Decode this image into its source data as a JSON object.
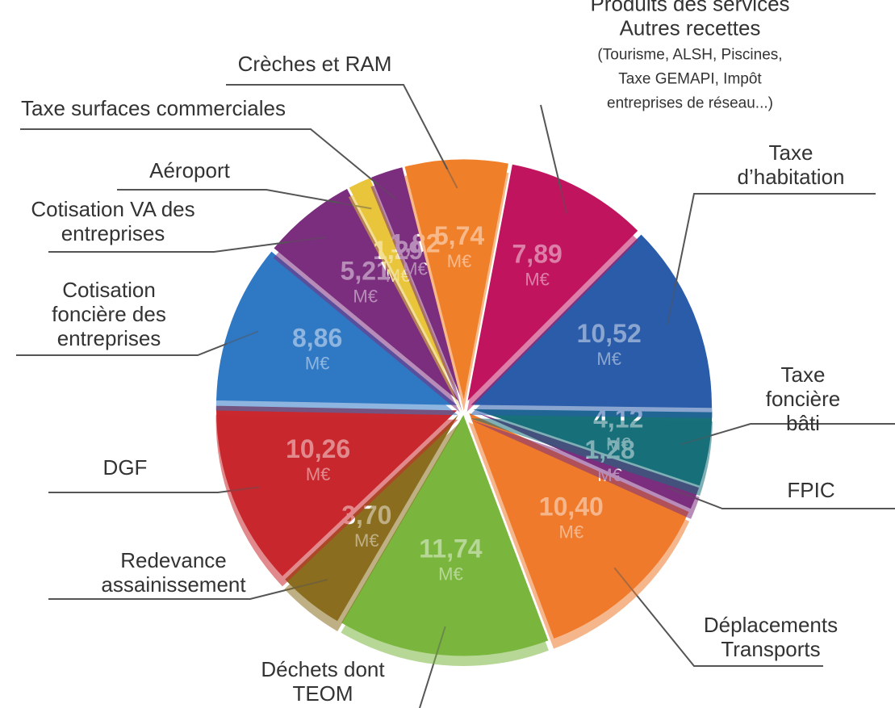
{
  "chart_data": {
    "type": "pie",
    "categories": [
      "Taxe\nd’habitation",
      "Taxe foncière\nbâti",
      "FPIC",
      "Déplacements\nTransports",
      "Déchets dont\nTEOM",
      "Redevance\nassainissement",
      "DGF",
      "Cotisation\nfoncière des\nentreprises",
      "Cotisation VA des\nentreprises",
      "Aéroport",
      "Taxe surfaces commerciales",
      "Crèches et RAM",
      "Produits des services\nAutres recettes"
    ],
    "values": [
      10.52,
      4.12,
      1.28,
      10.4,
      11.74,
      3.7,
      10.26,
      8.86,
      5.21,
      1.29,
      1.82,
      5.74,
      7.89
    ],
    "value_labels": [
      "10,52",
      "4,12",
      "1,28",
      "10,40",
      "11,74",
      "3,70",
      "10,26",
      "8,86",
      "5,21",
      "1,29",
      "1,82",
      "5,74",
      "7,89"
    ],
    "unit": "M€",
    "annotation": "(Tourisme, ALSH, Piscines,\nTaxe GEMAPI, Impôt entreprises de réseau...)",
    "colors": [
      "#2a5caa",
      "#17707a",
      "#7b2d7e",
      "#ef7a2b",
      "#7ab63e",
      "#8a6d1f",
      "#c8282e",
      "#2f78c4",
      "#7b2d7e",
      "#e8c53a",
      "#7b2d7e",
      "#f07f2a",
      "#c0145e"
    ]
  }
}
